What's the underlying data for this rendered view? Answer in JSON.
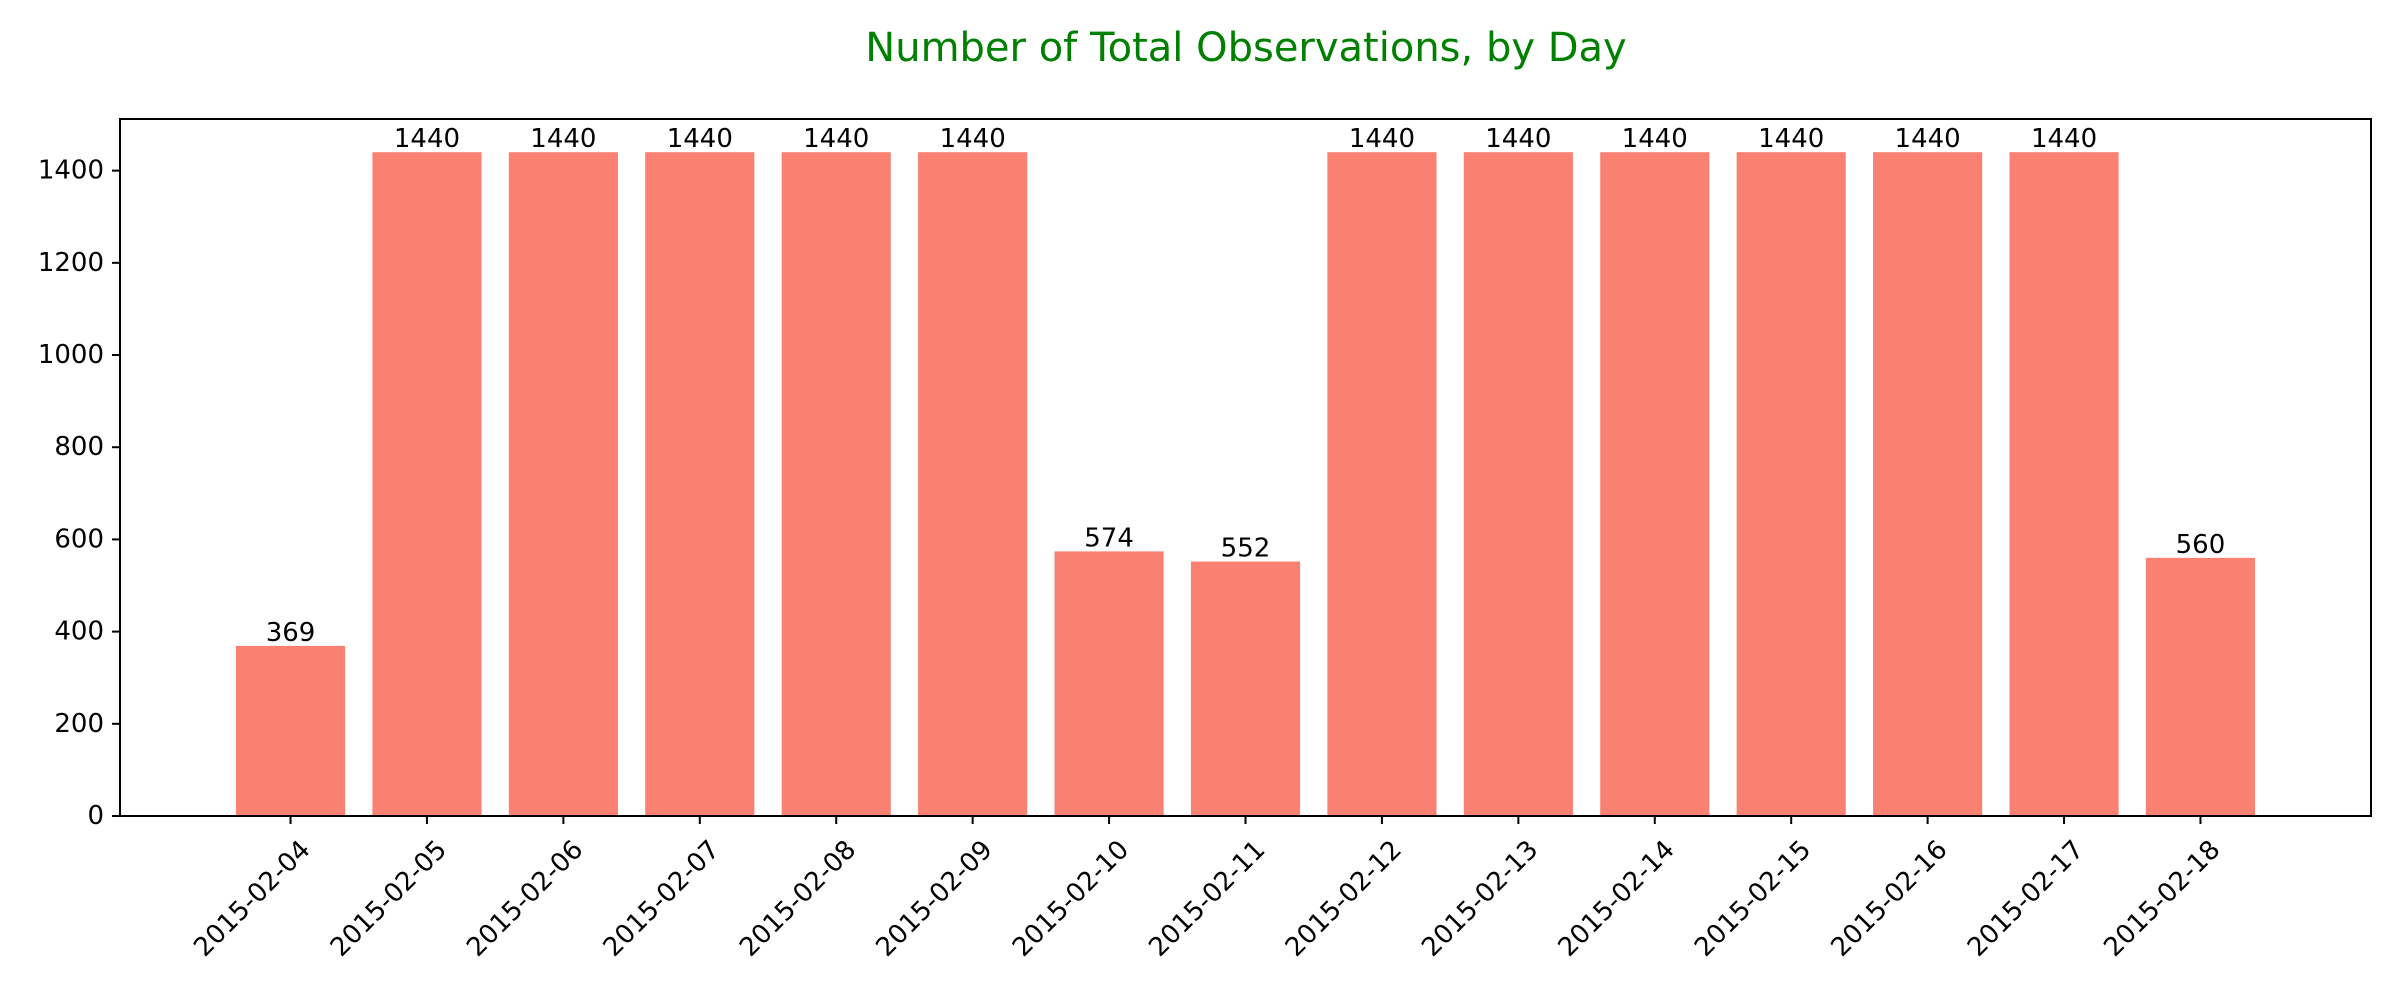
{
  "colors": {
    "bar": "#fa8072",
    "title": "#008000",
    "text": "#000000",
    "background": "#ffffff"
  },
  "chart_data": {
    "type": "bar",
    "title": "Number of Total Observations, by Day",
    "xlabel": "",
    "ylabel": "",
    "categories": [
      "2015-02-04",
      "2015-02-05",
      "2015-02-06",
      "2015-02-07",
      "2015-02-08",
      "2015-02-09",
      "2015-02-10",
      "2015-02-11",
      "2015-02-12",
      "2015-02-13",
      "2015-02-14",
      "2015-02-15",
      "2015-02-16",
      "2015-02-17",
      "2015-02-18"
    ],
    "values": [
      369,
      1440,
      1440,
      1440,
      1440,
      1440,
      574,
      552,
      1440,
      1440,
      1440,
      1440,
      1440,
      1440,
      560
    ],
    "ylim": [
      0,
      1512
    ],
    "yticks": [
      0,
      200,
      400,
      600,
      800,
      1000,
      1200,
      1400
    ],
    "grid": false,
    "legend": "none",
    "data_labels": true
  }
}
